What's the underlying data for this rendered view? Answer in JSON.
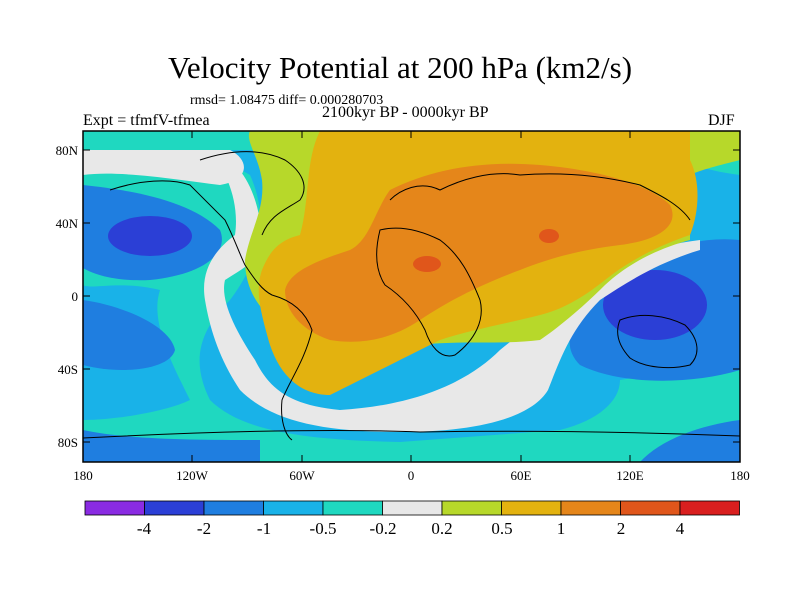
{
  "title": "Velocity Potential at 200 hPa (km2/s)",
  "stats": "rmsd= 1.08475 diff= 0.000280703",
  "experiment": "Expt = tfmfV-tfmea",
  "period": "2100kyr BP - 0000kyr BP",
  "season": "DJF",
  "map": {
    "lat_ticks": [
      "80N",
      "40N",
      "0",
      "40S",
      "80S"
    ],
    "lon_ticks": [
      "180",
      "120W",
      "60W",
      "0",
      "60E",
      "120E",
      "180"
    ]
  },
  "colorbar": {
    "colors": [
      "#8a2be2",
      "#2b3fd6",
      "#1f7ee0",
      "#19b2e8",
      "#1fd8c0",
      "#e8e8e8",
      "#b7d82a",
      "#e3b20f",
      "#e5861a",
      "#e0561b",
      "#d91f1f"
    ],
    "labels": [
      "-4",
      "-2",
      "-1",
      "-0.5",
      "-0.2",
      "0.2",
      "0.5",
      "1",
      "2",
      "4"
    ]
  },
  "palette": {
    "strong_negative": "#2b3fd6",
    "negative": "#1f7ee0",
    "weak_negative": "#19b2e8",
    "slight_negative": "#1fd8c0",
    "neutral": "#e8e8e8",
    "slight_positive": "#b7d82a",
    "weak_positive": "#e3b20f",
    "positive": "#e5861a",
    "strong_positive": "#e0561b"
  }
}
